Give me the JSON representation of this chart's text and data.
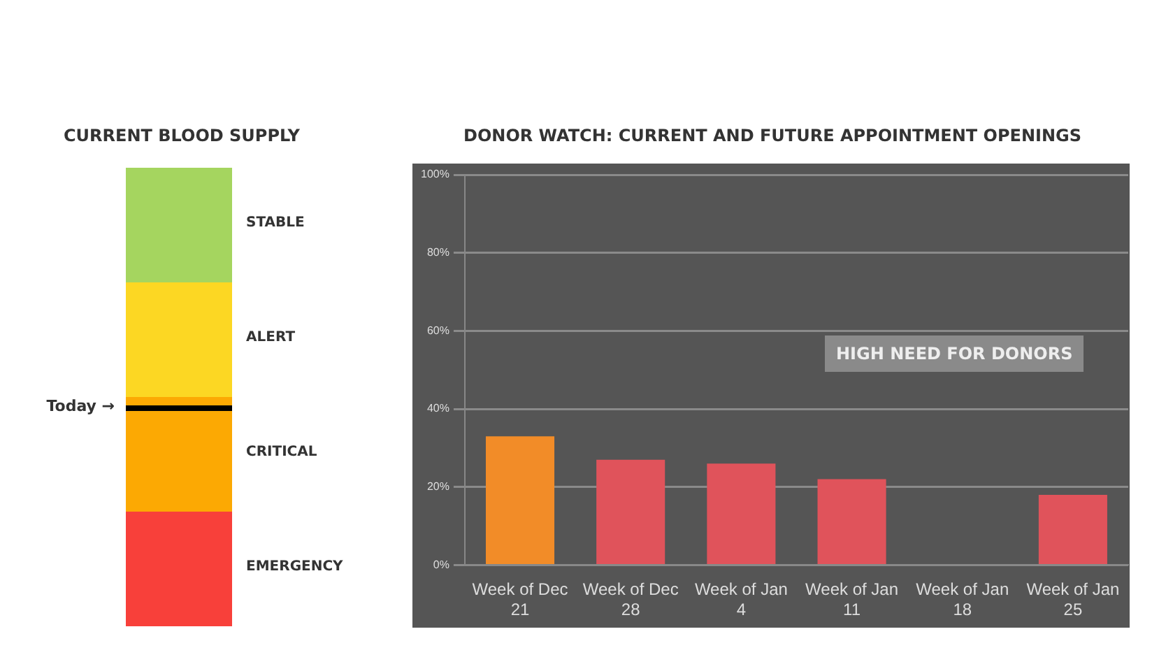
{
  "chart_data": [
    {
      "type": "other",
      "title": "CURRENT BLOOD SUPPLY",
      "categories": [
        "STABLE",
        "ALERT",
        "CRITICAL",
        "EMERGENCY"
      ],
      "colors": [
        "#a5d55f",
        "#fcd723",
        "#fca903",
        "#f8403a"
      ],
      "annotations": [
        "Today →"
      ]
    },
    {
      "type": "bar",
      "title": "DONOR WATCH: CURRENT AND FUTURE APPOINTMENT OPENINGS",
      "categories": [
        "Week of Dec 21",
        "Week of Dec 28",
        "Week of Jan 4",
        "Week of Jan 11",
        "Week of Jan 18",
        "Week of Jan 25"
      ],
      "values": [
        33,
        27,
        26,
        22,
        null,
        18
      ],
      "colors": [
        "#f28c28",
        "#e0535b",
        "#e0535b",
        "#e0535b",
        "#e0535b",
        "#e0535b"
      ],
      "ylim": [
        0,
        100
      ],
      "yticks": [
        {
          "value": 0,
          "label": "0%"
        },
        {
          "value": 20,
          "label": "20%"
        },
        {
          "value": 40,
          "label": "40%"
        },
        {
          "value": 60,
          "label": "60%"
        },
        {
          "value": 80,
          "label": "80%"
        },
        {
          "value": 100,
          "label": "100%"
        }
      ],
      "grid": "y",
      "legend": false,
      "annotations": [
        "HIGH NEED FOR DONORS"
      ]
    }
  ]
}
